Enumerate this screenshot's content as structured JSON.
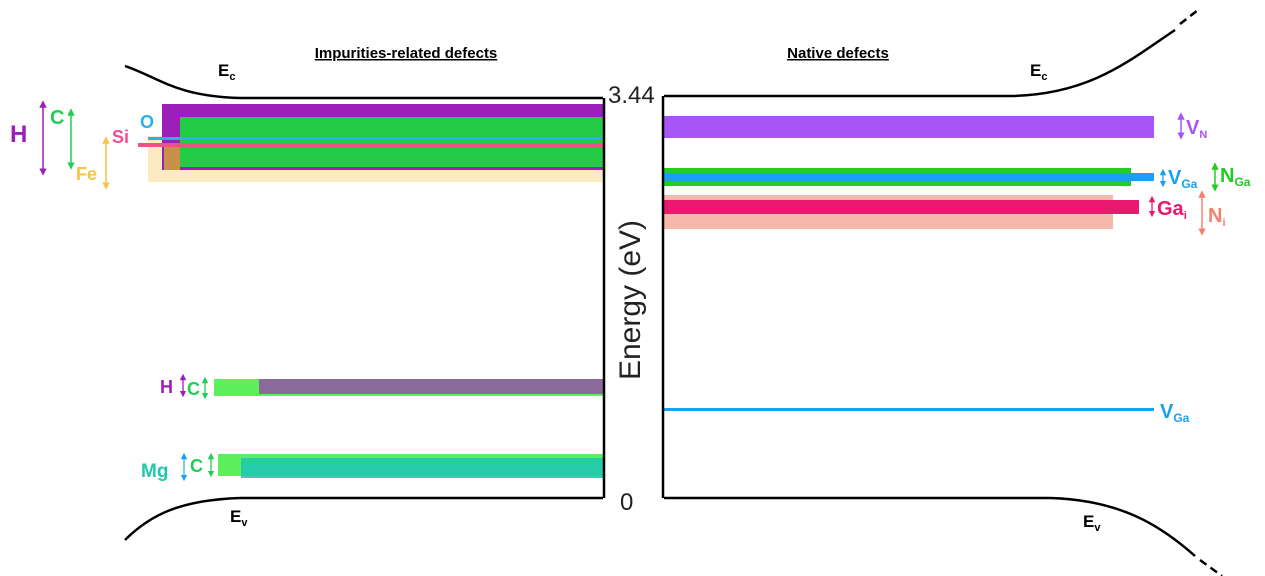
{
  "titles": {
    "left": "Impurities-related defects",
    "right": "Native defects"
  },
  "band_edges": {
    "left_conduction": "E",
    "left_conduction_sub": "c",
    "left_valence": "E",
    "left_valence_sub": "v",
    "right_conduction": "E",
    "right_conduction_sub": "c",
    "right_valence": "E",
    "right_valence_sub": "v"
  },
  "axis": {
    "title": "Energy (eV)",
    "top_value": "3.44",
    "bottom_value": "0"
  },
  "impurity_labels": {
    "H": "H",
    "C": "C",
    "Fe": "Fe",
    "Si": "Si",
    "O": "O",
    "H_low": "H",
    "C_low": "C",
    "Mg": "Mg",
    "C_mg": "C"
  },
  "native_labels": {
    "VN": "V",
    "VN_sub": "N",
    "VGa_upper": "V",
    "VGa_upper_sub": "Ga",
    "NGa": "N",
    "NGa_sub": "Ga",
    "Gai": "Ga",
    "Gai_sub": "i",
    "Ni": "N",
    "Ni_sub": "i",
    "VGa_lower": "V",
    "VGa_lower_sub": "Ga"
  },
  "colors": {
    "H": "#9b1fb8",
    "C": "#22cc55",
    "Fe": "#f5c24a",
    "Si": "#f0508c",
    "O": "#2ab0e8",
    "Mg": "#1ec8b0",
    "VN": "#a855f7",
    "VGa": "#1aa0f0",
    "NGa": "#22cc22",
    "Gai": "#e8196e",
    "Ni": "#f49a8a"
  }
}
